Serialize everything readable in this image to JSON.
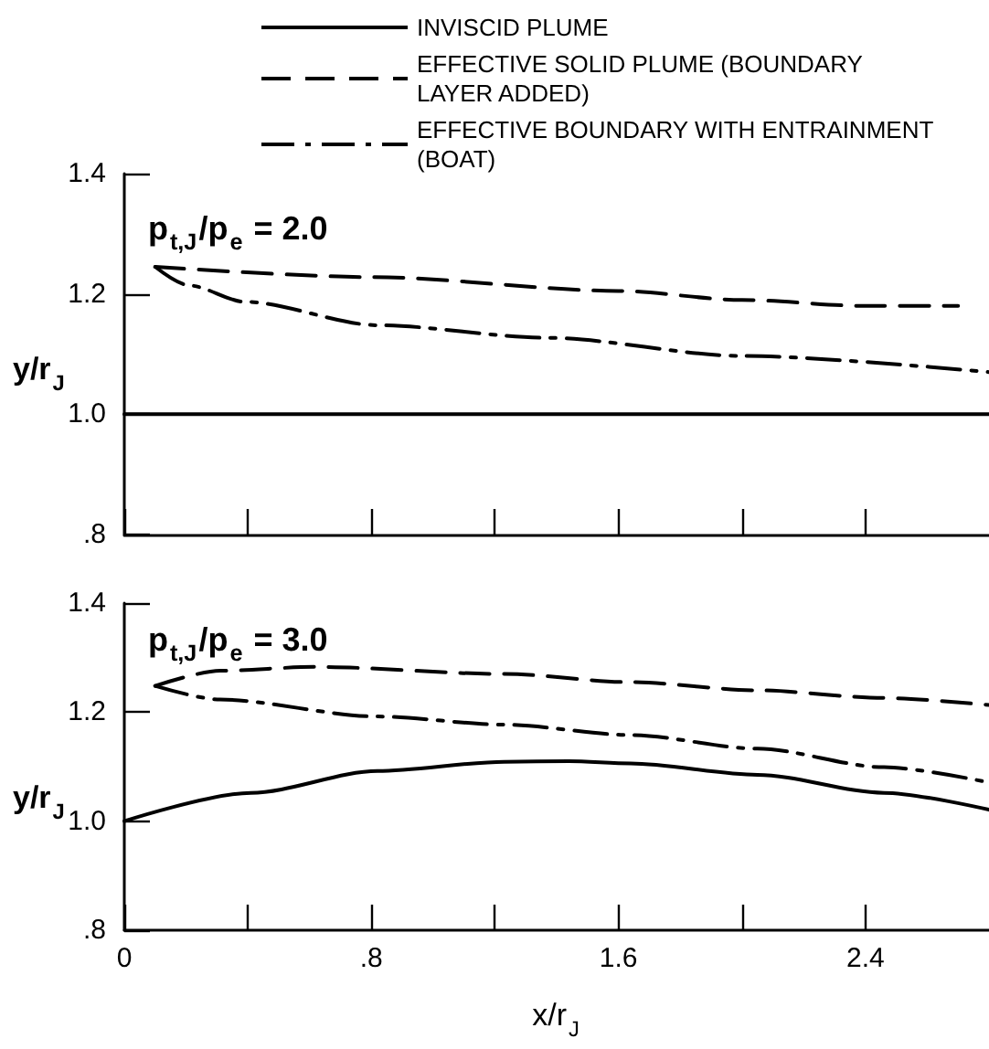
{
  "chart_data": [
    {
      "type": "line",
      "ylabel": "y/r$_{J}$",
      "annotations": [
        "p$_{t,J}$/p$_{e}$ = 2.0"
      ],
      "xlim": [
        0,
        2.8
      ],
      "xticks": [
        {
          "value": 0,
          "label": null
        },
        {
          "value": 0.4,
          "label": null
        },
        {
          "value": 0.8,
          "label": null
        },
        {
          "value": 1.2,
          "label": null
        },
        {
          "value": 1.6,
          "label": null
        },
        {
          "value": 2.0,
          "label": null
        },
        {
          "value": 2.4,
          "label": null
        }
      ],
      "ylim": [
        0.8,
        1.4
      ],
      "yticks": [
        {
          "value": 0.8,
          "label": ".8"
        },
        {
          "value": 1.0,
          "label": "1.0"
        },
        {
          "value": 1.2,
          "label": "1.2"
        },
        {
          "value": 1.4,
          "label": "1.4"
        }
      ],
      "tick_labels": "y",
      "legend": "top right",
      "grid": false,
      "marker": "none",
      "series": [
        {
          "name": "INVISCID PLUME",
          "color": "#000000",
          "line_style": "solid",
          "x": [
            0,
            2.8
          ],
          "values": [
            1.0,
            1.0
          ]
        },
        {
          "name": "EFFECTIVE SOLID PLUME (BOUNDARY LAYER ADDED)",
          "color": "#000000",
          "line_style": "dashed",
          "x": [
            0.1,
            0.8,
            1.6,
            2.0,
            2.4,
            2.7
          ],
          "values": [
            1.245,
            1.228,
            1.205,
            1.19,
            1.18,
            1.18
          ]
        },
        {
          "name": "EFFECTIVE BOUNDARY WITH ENTRAINMENT (BOAT)",
          "color": "#000000",
          "line_style": "dashdot",
          "x": [
            0.1,
            0.21,
            0.39,
            0.82,
            1.37,
            2.0,
            2.8
          ],
          "values": [
            1.245,
            1.214,
            1.187,
            1.148,
            1.127,
            1.097,
            1.07
          ]
        }
      ]
    },
    {
      "type": "line",
      "xlabel": "x/r$_{J}$",
      "ylabel": "y/r$_{J}$",
      "annotations": [
        "p$_{t,J}$/p$_{e}$ = 3.0"
      ],
      "xlim": [
        0,
        2.8
      ],
      "xticks": [
        {
          "value": 0,
          "label": "0"
        },
        {
          "value": 0.4,
          "label": null
        },
        {
          "value": 0.8,
          "label": ".8"
        },
        {
          "value": 1.2,
          "label": null
        },
        {
          "value": 1.6,
          "label": "1.6"
        },
        {
          "value": 2.0,
          "label": null
        },
        {
          "value": 2.4,
          "label": "2.4"
        }
      ],
      "ylim": [
        0.8,
        1.4
      ],
      "yticks": [
        {
          "value": 0.8,
          "label": ".8"
        },
        {
          "value": 1.0,
          "label": "1.0"
        },
        {
          "value": 1.2,
          "label": "1.2"
        },
        {
          "value": 1.4,
          "label": "1.4"
        }
      ],
      "legend": false,
      "grid": false,
      "marker": "none",
      "series": [
        {
          "color": "#000000",
          "line_style": "solid",
          "x": [
            0,
            0.41,
            0.82,
            1.23,
            1.44,
            1.64,
            2.05,
            2.46,
            2.8
          ],
          "values": [
            1.0,
            1.052,
            1.092,
            1.109,
            1.11,
            1.106,
            1.085,
            1.052,
            1.021
          ]
        },
        {
          "color": "#000000",
          "line_style": "dashed",
          "x": [
            0.1,
            0.31,
            0.62,
            1.23,
            1.64,
            2.05,
            2.46,
            2.8
          ],
          "values": [
            1.248,
            1.276,
            1.283,
            1.27,
            1.255,
            1.24,
            1.226,
            1.213
          ]
        },
        {
          "color": "#000000",
          "line_style": "dashdot",
          "x": [
            0.1,
            0.31,
            0.82,
            1.23,
            1.64,
            2.05,
            2.46,
            2.8
          ],
          "values": [
            1.248,
            1.223,
            1.192,
            1.177,
            1.158,
            1.133,
            1.099,
            1.071
          ]
        }
      ]
    }
  ]
}
